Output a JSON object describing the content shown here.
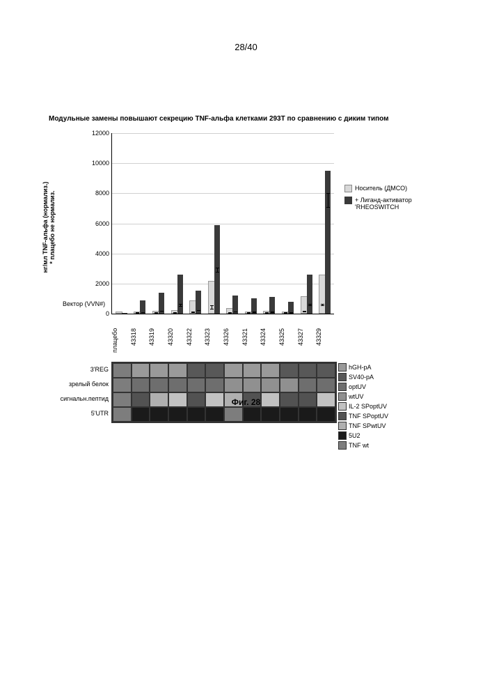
{
  "page_number": "28/40",
  "title": "Модульные замены повышают секрецию TNF-альфа клетками 293T по сравнению с диким типом",
  "y_axis_label": "нг/мл TNF-альфа (нормализ.)\n* плацебо не нормализ.",
  "vector_caption": "Вектор (VVN#)",
  "fig_caption": "Фиг. 28",
  "legend": {
    "carrier": "Носитель (ДМСО)",
    "ligand": "+ Лиганд-активатор 'RHEOSWITCH"
  },
  "chart": {
    "type": "bar",
    "ylim": [
      0,
      12000
    ],
    "ytick_step": 2000,
    "background_color": "#ffffff",
    "grid_color": "#d0d0d0",
    "carrier_color": "#d8d8d8",
    "ligand_color": "#3a3a3a",
    "categories": [
      "плацебо",
      "43318",
      "43319",
      "43320",
      "43322",
      "43323",
      "43326",
      "43321",
      "43324",
      "43325",
      "43327",
      "43329"
    ],
    "carrier_values": [
      50,
      50,
      80,
      150,
      800,
      2100,
      300,
      50,
      80,
      60,
      1050,
      2500
    ],
    "ligand_values": [
      60,
      900,
      1400,
      2600,
      1550,
      5900,
      1200,
      1000,
      1100,
      800,
      2600,
      9500
    ],
    "carrier_err": [
      0,
      100,
      100,
      150,
      200,
      800,
      100,
      100,
      100,
      100,
      150,
      300
    ],
    "ligand_err": [
      0,
      150,
      250,
      500,
      200,
      300,
      150,
      100,
      150,
      100,
      300,
      600
    ]
  },
  "vector_table": {
    "row_labels": [
      "3'REG",
      "зрелый белок",
      "сигнальн.пептид",
      "5'UTR"
    ],
    "colors": {
      "hGH-pA": "#9a9a9a",
      "SV40-pA": "#585858",
      "optUV": "#6e6e6e",
      "wtUV": "#909090",
      "IL-2 SPoptUV": "#c2c2c2",
      "TNF SPoptUV": "#525252",
      "TNF SPwtUV": "#b0b0b0",
      "5U2": "#1a1a1a",
      "TNF wt": "#7d7d7d"
    },
    "grid": [
      [
        "TNF wt",
        "hGH-pA",
        "hGH-pA",
        "hGH-pA",
        "SV40-pA",
        "SV40-pA",
        "hGH-pA",
        "hGH-pA",
        "hGH-pA",
        "SV40-pA",
        "SV40-pA",
        "SV40-pA"
      ],
      [
        "TNF wt",
        "optUV",
        "optUV",
        "optUV",
        "optUV",
        "optUV",
        "wtUV",
        "wtUV",
        "wtUV",
        "wtUV",
        "optUV",
        "optUV"
      ],
      [
        "TNF wt",
        "TNF SPoptUV",
        "TNF SPwtUV",
        "IL-2 SPoptUV",
        "TNF SPoptUV",
        "IL-2 SPoptUV",
        "TNF SPwtUV",
        "TNF SPoptUV",
        "IL-2 SPoptUV",
        "TNF SPoptUV",
        "TNF SPoptUV",
        "IL-2 SPoptUV"
      ],
      [
        "TNF wt",
        "5U2",
        "5U2",
        "5U2",
        "5U2",
        "5U2",
        "TNF wt",
        "5U2",
        "5U2",
        "5U2",
        "5U2",
        "5U2"
      ]
    ],
    "legend_order": [
      "hGH-pA",
      "SV40-pA",
      "optUV",
      "wtUV",
      "IL-2 SPoptUV",
      "TNF SPoptUV",
      "TNF SPwtUV",
      "5U2",
      "TNF wt"
    ]
  }
}
